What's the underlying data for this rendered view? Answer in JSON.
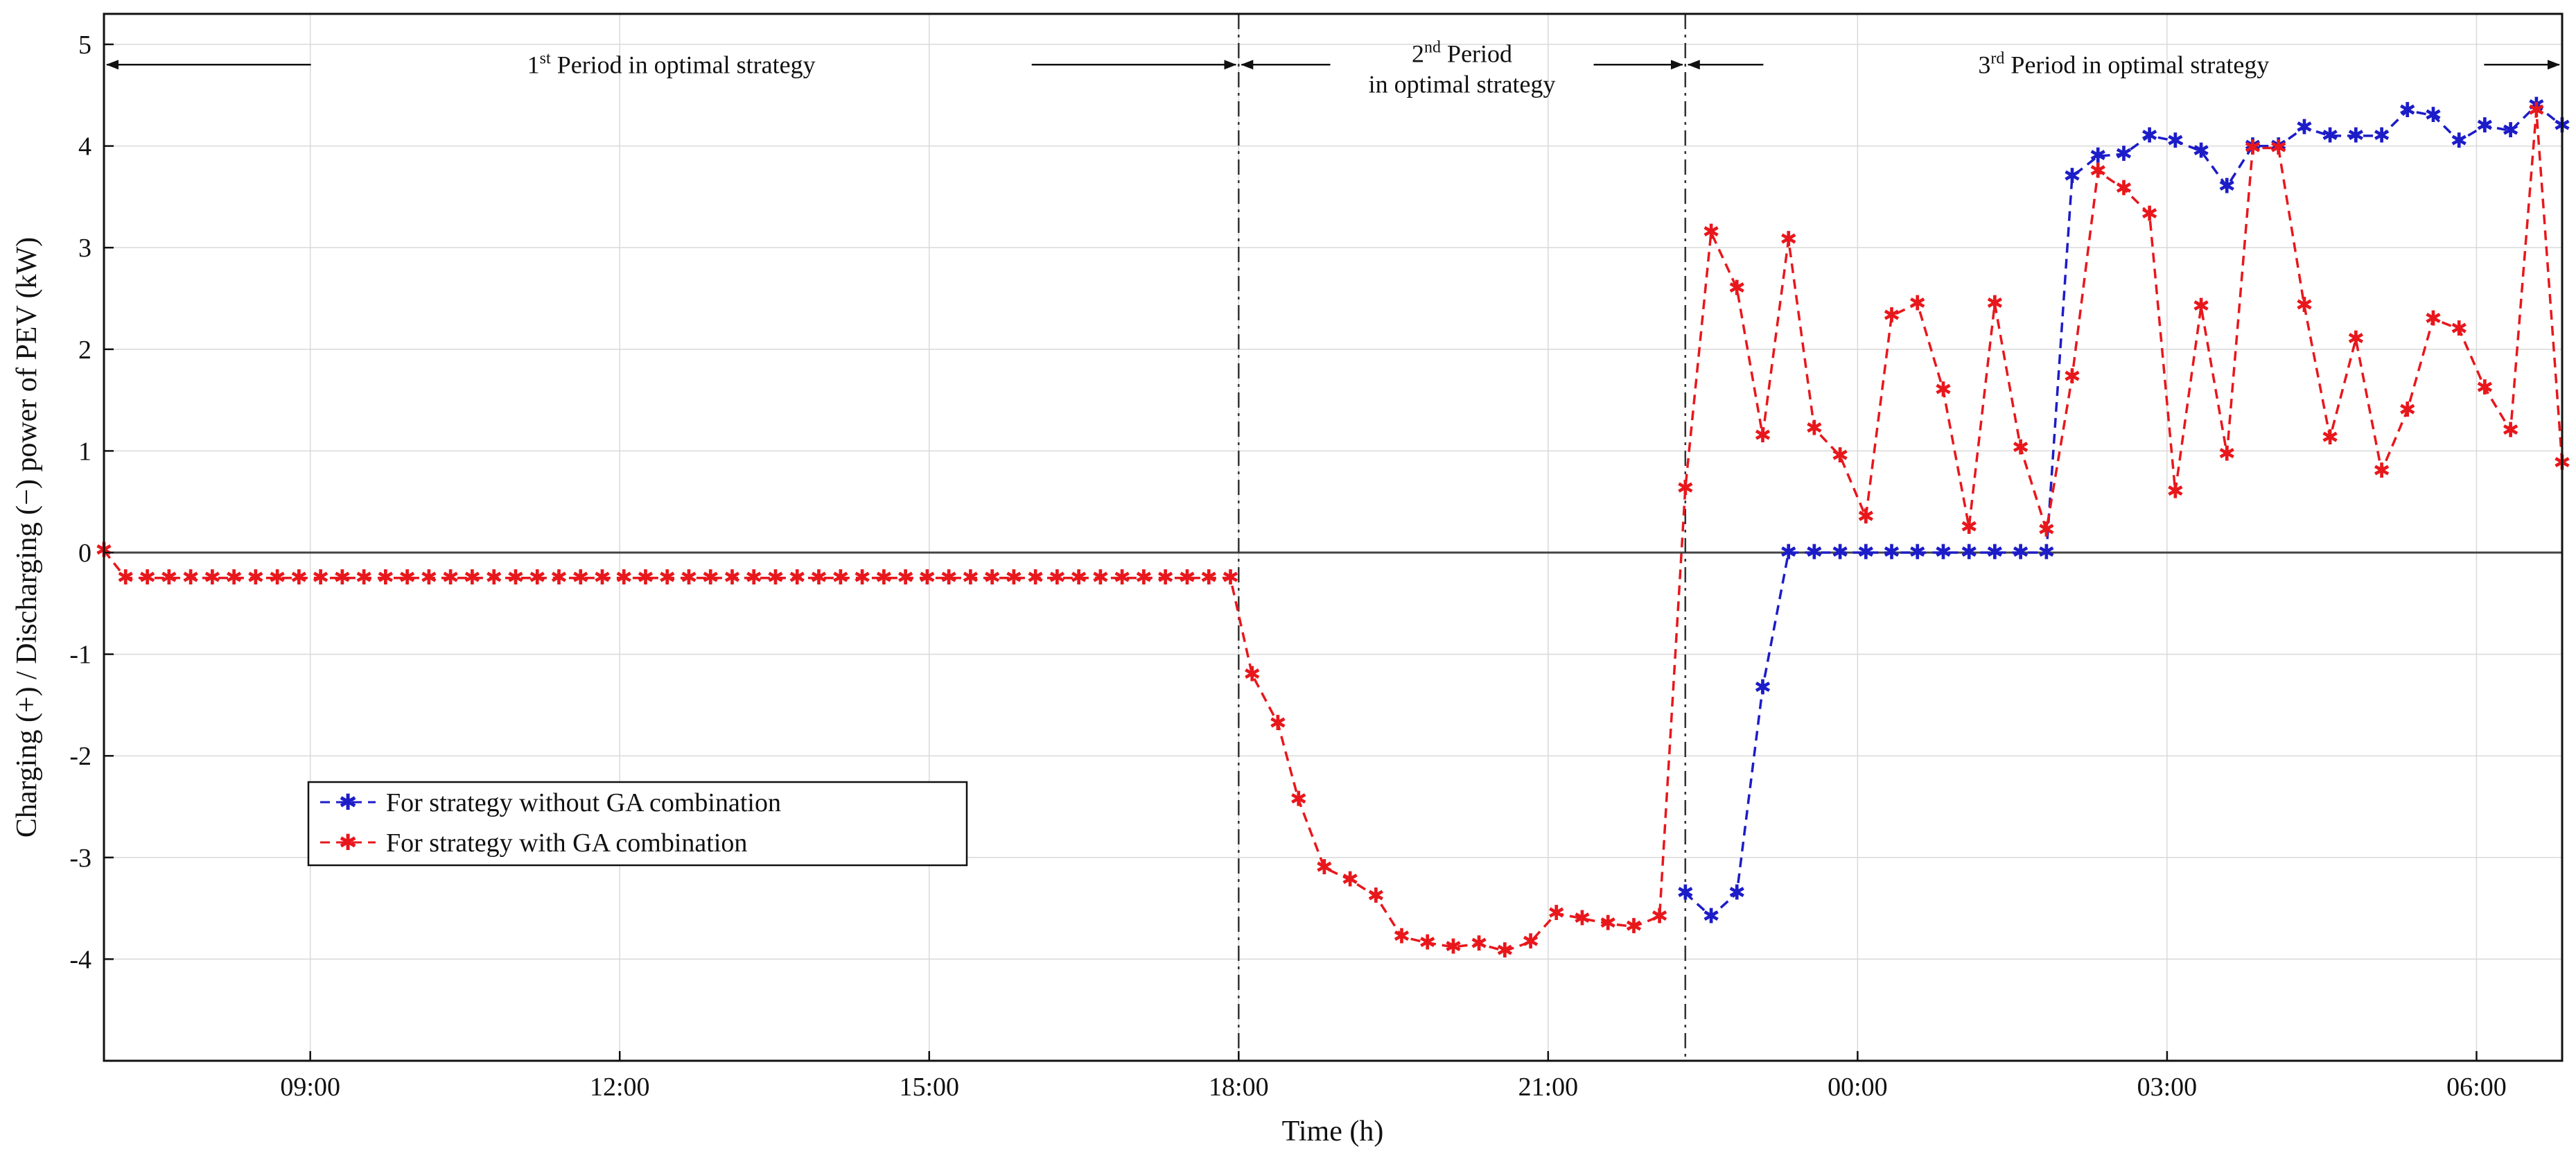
{
  "chart_data": {
    "type": "line",
    "title": "",
    "xlabel": "Time (h)",
    "ylabel": "Charging (+) / Discharging (−) power of PEV (kW)",
    "xlim": [
      7.0,
      30.83
    ],
    "ylim": [
      -5,
      5.3
    ],
    "x_ticks": [
      {
        "value": 9,
        "label": "09:00"
      },
      {
        "value": 12,
        "label": "12:00"
      },
      {
        "value": 15,
        "label": "15:00"
      },
      {
        "value": 18,
        "label": "18:00"
      },
      {
        "value": 21,
        "label": "21:00"
      },
      {
        "value": 24,
        "label": "00:00"
      },
      {
        "value": 27,
        "label": "03:00"
      },
      {
        "value": 30,
        "label": "06:00"
      }
    ],
    "y_ticks": [
      {
        "value": 5,
        "label": "5"
      },
      {
        "value": 4,
        "label": "4"
      },
      {
        "value": 3,
        "label": "3"
      },
      {
        "value": 2,
        "label": "2"
      },
      {
        "value": 1,
        "label": "1"
      },
      {
        "value": 0,
        "label": "0"
      },
      {
        "value": -1,
        "label": "-1"
      },
      {
        "value": -2,
        "label": "-2"
      },
      {
        "value": -3,
        "label": "-3"
      },
      {
        "value": -4,
        "label": "-4"
      }
    ],
    "grid": true,
    "period_boundaries": [
      18.0,
      22.33
    ],
    "periods": [
      {
        "name": "period-1",
        "from": 7.0,
        "to": 18.0,
        "y": 4.8,
        "main": "1",
        "sup": "st",
        "rest": " Period in optimal strategy"
      },
      {
        "name": "period-2",
        "from": 18.0,
        "to": 22.33,
        "y": 4.8,
        "main": "2",
        "sup": "nd",
        "rest": " Period",
        "line2": "in optimal strategy"
      },
      {
        "name": "period-3",
        "from": 22.33,
        "to": 30.83,
        "y": 4.8,
        "main": "3",
        "sup": "rd",
        "rest": " Period in optimal strategy"
      }
    ],
    "series": [
      {
        "name": "For strategy without GA combination",
        "color": "#1c1cc8",
        "points": [
          [
            22.33,
            -3.35
          ],
          [
            22.58,
            -3.58
          ],
          [
            22.83,
            -3.35
          ],
          [
            23.08,
            -1.33
          ],
          [
            23.33,
            0.0
          ],
          [
            23.58,
            0.0
          ],
          [
            23.83,
            0.0
          ],
          [
            24.08,
            0.0
          ],
          [
            24.33,
            0.0
          ],
          [
            24.58,
            0.0
          ],
          [
            24.83,
            0.0
          ],
          [
            25.08,
            0.0
          ],
          [
            25.33,
            0.0
          ],
          [
            25.58,
            0.0
          ],
          [
            25.83,
            0.0
          ],
          [
            26.08,
            3.7
          ],
          [
            26.33,
            3.9
          ],
          [
            26.58,
            3.92
          ],
          [
            26.83,
            4.1
          ],
          [
            27.08,
            4.05
          ],
          [
            27.33,
            3.95
          ],
          [
            27.58,
            3.6
          ],
          [
            27.83,
            4.0
          ],
          [
            28.08,
            4.0
          ],
          [
            28.33,
            4.18
          ],
          [
            28.58,
            4.1
          ],
          [
            28.83,
            4.1
          ],
          [
            29.08,
            4.1
          ],
          [
            29.33,
            4.35
          ],
          [
            29.58,
            4.3
          ],
          [
            29.83,
            4.05
          ],
          [
            30.08,
            4.2
          ],
          [
            30.33,
            4.15
          ],
          [
            30.58,
            4.4
          ],
          [
            30.83,
            4.2
          ]
        ]
      },
      {
        "name": "For strategy with GA combination",
        "color": "#e8171c",
        "points": [
          [
            7.0,
            0.02
          ],
          [
            7.21,
            -0.25
          ],
          [
            7.42,
            -0.25
          ],
          [
            7.63,
            -0.25
          ],
          [
            7.84,
            -0.25
          ],
          [
            8.05,
            -0.25
          ],
          [
            8.26,
            -0.25
          ],
          [
            8.47,
            -0.25
          ],
          [
            8.68,
            -0.25
          ],
          [
            8.89,
            -0.25
          ],
          [
            9.1,
            -0.25
          ],
          [
            9.31,
            -0.25
          ],
          [
            9.52,
            -0.25
          ],
          [
            9.73,
            -0.25
          ],
          [
            9.94,
            -0.25
          ],
          [
            10.15,
            -0.25
          ],
          [
            10.36,
            -0.25
          ],
          [
            10.57,
            -0.25
          ],
          [
            10.78,
            -0.25
          ],
          [
            10.99,
            -0.25
          ],
          [
            11.2,
            -0.25
          ],
          [
            11.41,
            -0.25
          ],
          [
            11.62,
            -0.25
          ],
          [
            11.83,
            -0.25
          ],
          [
            12.04,
            -0.25
          ],
          [
            12.25,
            -0.25
          ],
          [
            12.46,
            -0.25
          ],
          [
            12.67,
            -0.25
          ],
          [
            12.88,
            -0.25
          ],
          [
            13.09,
            -0.25
          ],
          [
            13.3,
            -0.25
          ],
          [
            13.51,
            -0.25
          ],
          [
            13.72,
            -0.25
          ],
          [
            13.93,
            -0.25
          ],
          [
            14.14,
            -0.25
          ],
          [
            14.35,
            -0.25
          ],
          [
            14.56,
            -0.25
          ],
          [
            14.77,
            -0.25
          ],
          [
            14.98,
            -0.25
          ],
          [
            15.19,
            -0.25
          ],
          [
            15.4,
            -0.25
          ],
          [
            15.61,
            -0.25
          ],
          [
            15.82,
            -0.25
          ],
          [
            16.03,
            -0.25
          ],
          [
            16.24,
            -0.25
          ],
          [
            16.45,
            -0.25
          ],
          [
            16.66,
            -0.25
          ],
          [
            16.87,
            -0.25
          ],
          [
            17.08,
            -0.25
          ],
          [
            17.29,
            -0.25
          ],
          [
            17.5,
            -0.25
          ],
          [
            17.71,
            -0.25
          ],
          [
            17.92,
            -0.25
          ],
          [
            18.13,
            -1.2
          ],
          [
            18.38,
            -1.68
          ],
          [
            18.58,
            -2.43
          ],
          [
            18.83,
            -3.1
          ],
          [
            19.08,
            -3.22
          ],
          [
            19.33,
            -3.38
          ],
          [
            19.58,
            -3.78
          ],
          [
            19.83,
            -3.84
          ],
          [
            20.08,
            -3.88
          ],
          [
            20.33,
            -3.85
          ],
          [
            20.58,
            -3.92
          ],
          [
            20.83,
            -3.83
          ],
          [
            21.08,
            -3.55
          ],
          [
            21.33,
            -3.6
          ],
          [
            21.58,
            -3.65
          ],
          [
            21.83,
            -3.68
          ],
          [
            22.08,
            -3.58
          ],
          [
            22.33,
            0.63
          ],
          [
            22.58,
            3.15
          ],
          [
            22.83,
            2.6
          ],
          [
            23.08,
            1.15
          ],
          [
            23.33,
            3.08
          ],
          [
            23.58,
            1.22
          ],
          [
            23.83,
            0.95
          ],
          [
            24.08,
            0.35
          ],
          [
            24.33,
            2.33
          ],
          [
            24.58,
            2.45
          ],
          [
            24.83,
            1.6
          ],
          [
            25.08,
            0.25
          ],
          [
            25.33,
            2.45
          ],
          [
            25.58,
            1.03
          ],
          [
            25.83,
            0.22
          ],
          [
            26.08,
            1.73
          ],
          [
            26.33,
            3.75
          ],
          [
            26.58,
            3.58
          ],
          [
            26.83,
            3.33
          ],
          [
            27.08,
            0.6
          ],
          [
            27.33,
            2.42
          ],
          [
            27.58,
            0.97
          ],
          [
            27.83,
            3.98
          ],
          [
            28.08,
            3.98
          ],
          [
            28.33,
            2.43
          ],
          [
            28.58,
            1.13
          ],
          [
            28.83,
            2.1
          ],
          [
            29.08,
            0.8
          ],
          [
            29.33,
            1.4
          ],
          [
            29.58,
            2.3
          ],
          [
            29.83,
            2.2
          ],
          [
            30.08,
            1.62
          ],
          [
            30.33,
            1.2
          ],
          [
            30.58,
            4.35
          ],
          [
            30.83,
            0.88
          ]
        ]
      }
    ]
  }
}
